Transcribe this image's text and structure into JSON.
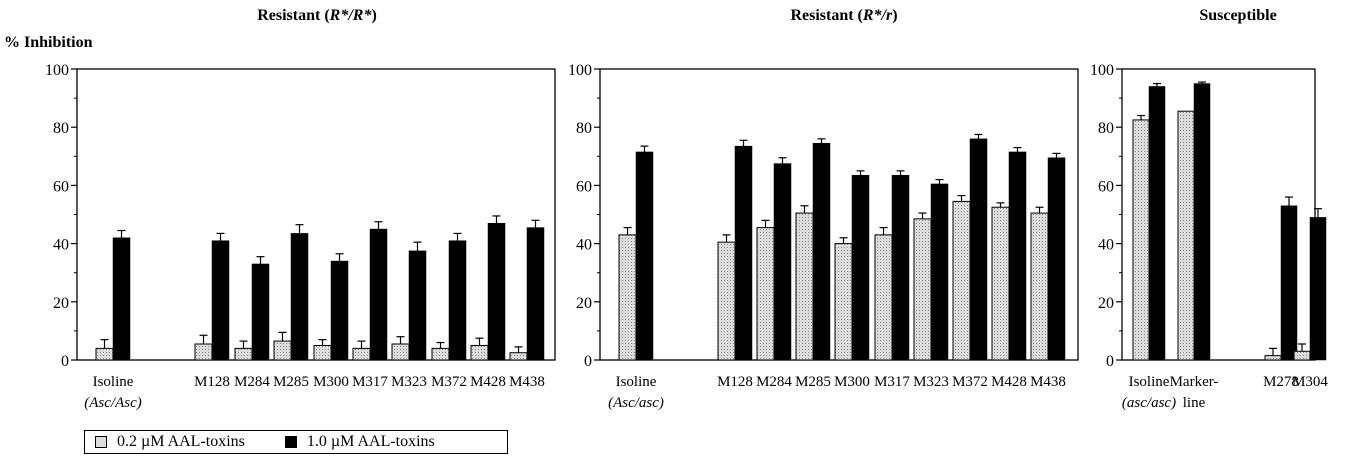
{
  "chart_data": [
    {
      "type": "bar",
      "title": "Resistant (R*/R*)",
      "title_plain": "Resistant (",
      "title_ital": "R*/R*",
      "title_end": ")",
      "ylabel": "% Inhibition",
      "ylim": [
        0,
        100
      ],
      "yticks": [
        0,
        20,
        40,
        60,
        80,
        100
      ],
      "categories": [
        "Isoline",
        "M128",
        "M284",
        "M285",
        "M300",
        "M317",
        "M323",
        "M372",
        "M428",
        "M438"
      ],
      "category_sublabels": [
        "(Asc/Asc)",
        "",
        "",
        "",
        "",
        "",
        "",
        "",
        "",
        ""
      ],
      "series": [
        {
          "name": "0.2 µM AAL-toxins",
          "values": [
            4,
            5.5,
            4,
            6.5,
            5,
            4,
            5.5,
            4,
            5,
            2.5
          ],
          "errors": [
            3,
            3,
            2.5,
            3,
            2,
            2.5,
            2.5,
            2,
            2.5,
            2
          ]
        },
        {
          "name": "1.0 µM AAL-toxins",
          "values": [
            42,
            41,
            33,
            43.5,
            34,
            45,
            37.5,
            41,
            47,
            45.5
          ],
          "errors": [
            2.5,
            2.5,
            2.5,
            3,
            2.5,
            2.5,
            3,
            2.5,
            2.5,
            2.5
          ]
        }
      ]
    },
    {
      "type": "bar",
      "title": "Resistant (R*/r)",
      "title_plain": "Resistant (",
      "title_ital": "R*/r",
      "title_end": ")",
      "ylim": [
        0,
        100
      ],
      "yticks": [
        0,
        20,
        40,
        60,
        80,
        100
      ],
      "categories": [
        "Isoline",
        "M128",
        "M284",
        "M285",
        "M300",
        "M317",
        "M323",
        "M372",
        "M428",
        "M438"
      ],
      "category_sublabels": [
        "(Asc/asc)",
        "",
        "",
        "",
        "",
        "",
        "",
        "",
        "",
        ""
      ],
      "series": [
        {
          "name": "0.2 µM AAL-toxins",
          "values": [
            43,
            40.5,
            45.5,
            50.5,
            40,
            43,
            48.5,
            54.5,
            52.5,
            50.5
          ],
          "errors": [
            2.5,
            2.5,
            2.5,
            2.5,
            2,
            2.5,
            2,
            2,
            1.5,
            2
          ]
        },
        {
          "name": "1.0 µM AAL-toxins",
          "values": [
            71.5,
            73.5,
            67.5,
            74.5,
            63.5,
            63.5,
            60.5,
            76,
            71.5,
            69.5
          ],
          "errors": [
            2,
            2,
            2,
            1.5,
            1.5,
            1.5,
            1.5,
            1.5,
            1.5,
            1.5
          ]
        }
      ]
    },
    {
      "type": "bar",
      "title": "Susceptible",
      "ylim": [
        0,
        100
      ],
      "yticks": [
        0,
        20,
        40,
        60,
        80,
        100
      ],
      "categories": [
        "Isoline",
        "Marker-",
        "M278",
        "M304"
      ],
      "category_sublabels": [
        "(asc/asc)",
        "line",
        "",
        ""
      ],
      "series": [
        {
          "name": "0.2 µM AAL-toxins",
          "values": [
            82.5,
            85.5,
            1.5,
            3
          ],
          "errors": [
            1.5,
            0,
            2.5,
            2.5
          ]
        },
        {
          "name": "1.0 µM AAL-toxins",
          "values": [
            94,
            95,
            53,
            49
          ],
          "errors": [
            1,
            0.5,
            3,
            3
          ]
        }
      ]
    }
  ],
  "legend": {
    "items": [
      {
        "label": "0.2 µM AAL-toxins",
        "color": "#dcdcdc"
      },
      {
        "label": "1.0 µM AAL-toxins",
        "color": "#000000"
      }
    ]
  },
  "colors": {
    "light_bar": "#dcdcdc",
    "dark_bar": "#000000"
  }
}
